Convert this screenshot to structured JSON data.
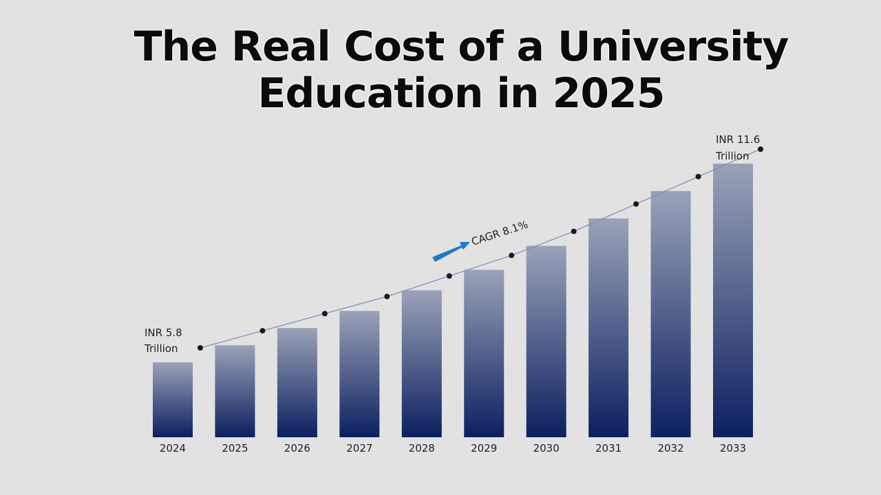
{
  "title_line1": "The Real Cost of a University",
  "title_line2": "Education in 2025",
  "chart_data": {
    "type": "bar",
    "categories": [
      "2024",
      "2025",
      "2026",
      "2027",
      "2028",
      "2029",
      "2030",
      "2031",
      "2032",
      "2033"
    ],
    "values": [
      5.8,
      6.3,
      6.8,
      7.3,
      7.9,
      8.5,
      9.2,
      10.0,
      10.8,
      11.6
    ],
    "trend_line": [
      5.8,
      6.3,
      6.8,
      7.3,
      7.9,
      8.5,
      9.2,
      10.0,
      10.8,
      11.6
    ],
    "annotations": {
      "start_line1": "INR 5.8",
      "start_line2": "Trillion",
      "end_line1": "INR 11.6",
      "end_line2": "Trillion",
      "cagr": "CAGR 8.1%"
    },
    "colors": {
      "bar_top": "#9aa2b8",
      "bar_bottom": "#0c2060",
      "line": "#7f8fc4",
      "point": "#1a1a1a",
      "arrow": "#1e78c8"
    },
    "grid": false,
    "legend": "none"
  }
}
